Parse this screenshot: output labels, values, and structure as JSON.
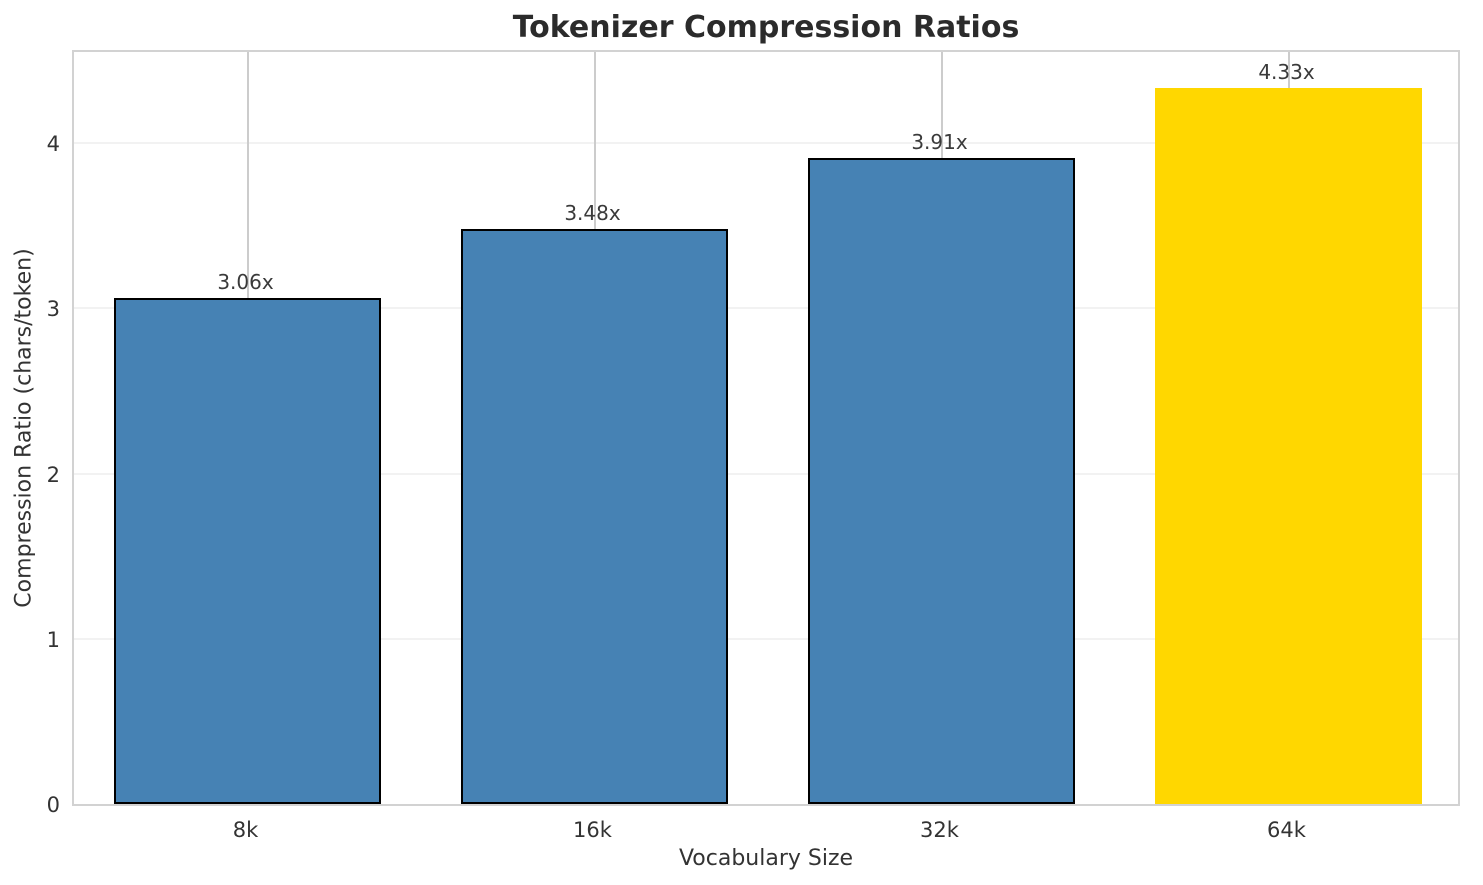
{
  "chart_data": {
    "type": "bar",
    "title": "Tokenizer Compression Ratios",
    "xlabel": "Vocabulary Size",
    "ylabel": "Compression Ratio (chars/token)",
    "categories": [
      "8k",
      "16k",
      "32k",
      "64k"
    ],
    "values": [
      3.06,
      3.48,
      3.91,
      4.33
    ],
    "bar_labels": [
      "3.06x",
      "3.48x",
      "3.91x",
      "4.33x"
    ],
    "bar_colors": [
      "#4682B4",
      "#4682B4",
      "#4682B4",
      "#FFD700"
    ],
    "bar_edge_colors": [
      "#000000",
      "#000000",
      "#000000",
      "none"
    ],
    "highlighted_category": "64k",
    "yticks": [
      0,
      1,
      2,
      3,
      4
    ],
    "ylim": [
      0,
      4.575
    ],
    "grid": true,
    "legend_position": "none"
  },
  "colors": {
    "spine": "#d2d2d2",
    "grid_horizontal": "#f2f2f2",
    "grid_vertical": "#cccccc",
    "text": "#333333",
    "title_text": "#2b2b2b",
    "bar_default": "#4682B4",
    "bar_highlight": "#FFD700",
    "bar_edge": "#000000"
  }
}
